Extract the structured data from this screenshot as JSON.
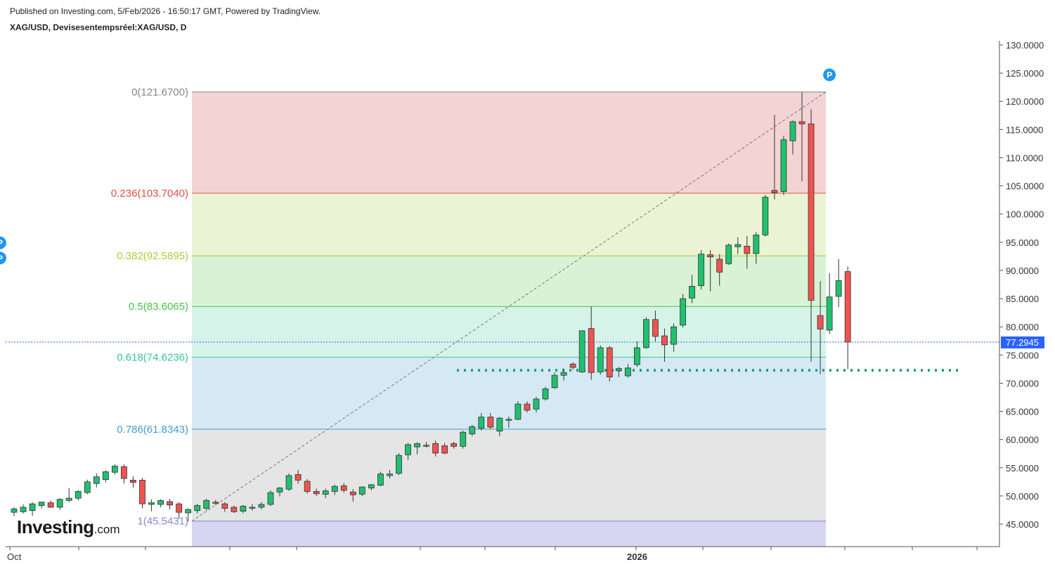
{
  "header": {
    "published": "Published on Investing.com, 5/Feb/2026 - 16:50:17 GMT, Powered by TradingView.",
    "symbol": "XAG/USD, Devisesentempsréel:XAG/USD, D"
  },
  "logo": {
    "main": "Investing",
    "domain": ".com"
  },
  "chart_data": {
    "type": "candlestick",
    "y_axis": {
      "min": 41,
      "max": 131,
      "ticks": [
        "130.0000",
        "125.0000",
        "120.0000",
        "115.0000",
        "110.0000",
        "105.0000",
        "100.0000",
        "95.0000",
        "90.0000",
        "85.0000",
        "80.0000",
        "75.0000",
        "70.0000",
        "65.0000",
        "60.0000",
        "55.0000",
        "50.0000",
        "45.0000"
      ]
    },
    "x_axis": {
      "labels": [
        "Oct",
        "2026"
      ]
    },
    "current_price": {
      "value": 77.2945,
      "label": "77.2945",
      "color": "#2962ff"
    },
    "support_level": {
      "value": 72.3,
      "color": "#26a17b"
    },
    "fibonacci": [
      {
        "level": 0,
        "price": 121.67,
        "label": "0(121.6700)",
        "color": "#888888",
        "fill": "#f3d3d3"
      },
      {
        "level": 0.236,
        "price": 103.704,
        "label": "0.236(103.7040)",
        "color": "#e0504a",
        "fill": "#eaf4d4"
      },
      {
        "level": 0.382,
        "price": 92.5895,
        "label": "0.382(92.5895)",
        "color": "#a9cf3a",
        "fill": "#d8f2d6"
      },
      {
        "level": 0.5,
        "price": 83.6065,
        "label": "0.5(83.6065)",
        "color": "#4cc24c",
        "fill": "#d6f3e9"
      },
      {
        "level": 0.618,
        "price": 74.6236,
        "label": "0.618(74.6236)",
        "color": "#3cc49a",
        "fill": "#d5e9f4"
      },
      {
        "level": 0.786,
        "price": 61.8343,
        "label": "0.786(61.8343)",
        "color": "#3d9fd6",
        "fill": "#e5e5e5"
      },
      {
        "level": 1,
        "price": 45.5431,
        "label": "1(45.5431)",
        "color": "#8888cc",
        "fill": "#d6d6f3"
      }
    ],
    "pivot_markers": [
      {
        "label": "P",
        "price": 124.7
      },
      {
        "label": "P",
        "price": 94.9
      },
      {
        "label": "P",
        "price": 92.2
      }
    ],
    "candles": [
      {
        "o": 47.1,
        "h": 48.0,
        "l": 46.4,
        "c": 47.7
      },
      {
        "o": 47.2,
        "h": 48.5,
        "l": 46.9,
        "c": 48.0
      },
      {
        "o": 47.4,
        "h": 48.9,
        "l": 46.5,
        "c": 48.6
      },
      {
        "o": 48.3,
        "h": 49.0,
        "l": 47.8,
        "c": 48.9
      },
      {
        "o": 48.8,
        "h": 49.2,
        "l": 47.9,
        "c": 48.0
      },
      {
        "o": 48.0,
        "h": 49.6,
        "l": 47.5,
        "c": 49.4
      },
      {
        "o": 49.2,
        "h": 51.4,
        "l": 48.9,
        "c": 49.6
      },
      {
        "o": 49.6,
        "h": 51.0,
        "l": 49.2,
        "c": 50.8
      },
      {
        "o": 50.6,
        "h": 52.9,
        "l": 50.3,
        "c": 52.5
      },
      {
        "o": 52.2,
        "h": 54.0,
        "l": 51.5,
        "c": 53.4
      },
      {
        "o": 52.9,
        "h": 54.6,
        "l": 52.4,
        "c": 54.3
      },
      {
        "o": 54.2,
        "h": 55.6,
        "l": 53.8,
        "c": 55.3
      },
      {
        "o": 55.2,
        "h": 55.6,
        "l": 52.2,
        "c": 53.1
      },
      {
        "o": 52.8,
        "h": 53.5,
        "l": 51.5,
        "c": 52.4
      },
      {
        "o": 52.8,
        "h": 53.2,
        "l": 47.8,
        "c": 48.6
      },
      {
        "o": 48.5,
        "h": 49.4,
        "l": 47.3,
        "c": 48.8
      },
      {
        "o": 48.5,
        "h": 49.4,
        "l": 48.0,
        "c": 49.2
      },
      {
        "o": 49.0,
        "h": 49.5,
        "l": 47.6,
        "c": 48.4
      },
      {
        "o": 48.6,
        "h": 48.9,
        "l": 46.0,
        "c": 47.1
      },
      {
        "o": 47.0,
        "h": 47.8,
        "l": 45.5,
        "c": 47.6
      },
      {
        "o": 47.4,
        "h": 48.6,
        "l": 46.9,
        "c": 48.3
      },
      {
        "o": 47.8,
        "h": 49.5,
        "l": 47.4,
        "c": 49.2
      },
      {
        "o": 48.9,
        "h": 49.3,
        "l": 48.4,
        "c": 48.7
      },
      {
        "o": 48.6,
        "h": 48.9,
        "l": 47.2,
        "c": 47.8
      },
      {
        "o": 48.0,
        "h": 48.3,
        "l": 47.0,
        "c": 47.2
      },
      {
        "o": 47.3,
        "h": 48.4,
        "l": 46.9,
        "c": 48.2
      },
      {
        "o": 47.9,
        "h": 48.6,
        "l": 47.4,
        "c": 48.0
      },
      {
        "o": 48.0,
        "h": 48.9,
        "l": 47.6,
        "c": 48.5
      },
      {
        "o": 48.5,
        "h": 51.0,
        "l": 48.2,
        "c": 50.6
      },
      {
        "o": 50.7,
        "h": 51.6,
        "l": 49.9,
        "c": 51.4
      },
      {
        "o": 51.2,
        "h": 54.0,
        "l": 50.9,
        "c": 53.6
      },
      {
        "o": 53.8,
        "h": 54.6,
        "l": 52.2,
        "c": 52.8
      },
      {
        "o": 52.6,
        "h": 53.0,
        "l": 50.4,
        "c": 50.8
      },
      {
        "o": 50.8,
        "h": 51.3,
        "l": 50.0,
        "c": 50.4
      },
      {
        "o": 50.3,
        "h": 51.3,
        "l": 49.6,
        "c": 50.9
      },
      {
        "o": 50.8,
        "h": 52.0,
        "l": 50.2,
        "c": 51.7
      },
      {
        "o": 51.8,
        "h": 52.3,
        "l": 50.6,
        "c": 51.0
      },
      {
        "o": 50.7,
        "h": 51.2,
        "l": 49.0,
        "c": 50.2
      },
      {
        "o": 50.3,
        "h": 51.6,
        "l": 50.0,
        "c": 51.6
      },
      {
        "o": 51.4,
        "h": 52.1,
        "l": 51.0,
        "c": 52.0
      },
      {
        "o": 51.9,
        "h": 54.3,
        "l": 51.7,
        "c": 53.9
      },
      {
        "o": 53.6,
        "h": 54.6,
        "l": 53.1,
        "c": 53.9
      },
      {
        "o": 54.0,
        "h": 57.6,
        "l": 53.7,
        "c": 57.2
      },
      {
        "o": 57.3,
        "h": 59.4,
        "l": 56.4,
        "c": 59.1
      },
      {
        "o": 58.7,
        "h": 59.5,
        "l": 57.4,
        "c": 59.3
      },
      {
        "o": 59.0,
        "h": 59.6,
        "l": 58.6,
        "c": 59.0
      },
      {
        "o": 59.3,
        "h": 59.8,
        "l": 57.0,
        "c": 57.6
      },
      {
        "o": 58.9,
        "h": 59.4,
        "l": 57.4,
        "c": 57.6
      },
      {
        "o": 59.3,
        "h": 59.6,
        "l": 58.4,
        "c": 58.8
      },
      {
        "o": 58.8,
        "h": 61.6,
        "l": 58.4,
        "c": 61.3
      },
      {
        "o": 61.0,
        "h": 62.6,
        "l": 60.6,
        "c": 62.3
      },
      {
        "o": 62.0,
        "h": 64.7,
        "l": 61.6,
        "c": 64.0
      },
      {
        "o": 64.0,
        "h": 64.7,
        "l": 61.9,
        "c": 62.2
      },
      {
        "o": 61.5,
        "h": 64.0,
        "l": 60.6,
        "c": 63.8
      },
      {
        "o": 63.5,
        "h": 64.1,
        "l": 62.1,
        "c": 63.6
      },
      {
        "o": 63.6,
        "h": 66.8,
        "l": 63.4,
        "c": 66.3
      },
      {
        "o": 66.3,
        "h": 66.8,
        "l": 64.8,
        "c": 65.2
      },
      {
        "o": 65.4,
        "h": 67.6,
        "l": 64.8,
        "c": 67.2
      },
      {
        "o": 67.2,
        "h": 69.4,
        "l": 66.9,
        "c": 69.0
      },
      {
        "o": 69.2,
        "h": 71.9,
        "l": 69.0,
        "c": 71.4
      },
      {
        "o": 71.4,
        "h": 72.6,
        "l": 70.5,
        "c": 71.9
      },
      {
        "o": 73.4,
        "h": 73.7,
        "l": 72.4,
        "c": 72.8
      },
      {
        "o": 72.0,
        "h": 79.4,
        "l": 71.8,
        "c": 79.3
      },
      {
        "o": 79.7,
        "h": 83.6,
        "l": 70.6,
        "c": 71.9
      },
      {
        "o": 72.0,
        "h": 76.7,
        "l": 71.5,
        "c": 76.3
      },
      {
        "o": 76.3,
        "h": 76.6,
        "l": 70.3,
        "c": 71.1
      },
      {
        "o": 72.2,
        "h": 72.9,
        "l": 71.1,
        "c": 72.6
      },
      {
        "o": 71.3,
        "h": 73.4,
        "l": 71.0,
        "c": 72.7
      },
      {
        "o": 73.3,
        "h": 77.4,
        "l": 72.9,
        "c": 76.3
      },
      {
        "o": 76.3,
        "h": 81.7,
        "l": 76.1,
        "c": 81.3
      },
      {
        "o": 81.3,
        "h": 82.9,
        "l": 77.4,
        "c": 78.3
      },
      {
        "o": 78.4,
        "h": 79.7,
        "l": 73.8,
        "c": 76.8
      },
      {
        "o": 76.9,
        "h": 80.6,
        "l": 75.6,
        "c": 80.0
      },
      {
        "o": 80.3,
        "h": 85.8,
        "l": 79.9,
        "c": 85.0
      },
      {
        "o": 85.1,
        "h": 89.2,
        "l": 84.2,
        "c": 87.2
      },
      {
        "o": 87.3,
        "h": 93.6,
        "l": 86.6,
        "c": 92.9
      },
      {
        "o": 92.8,
        "h": 93.6,
        "l": 86.3,
        "c": 92.4
      },
      {
        "o": 92.0,
        "h": 92.9,
        "l": 87.3,
        "c": 89.7
      },
      {
        "o": 91.2,
        "h": 94.8,
        "l": 91.0,
        "c": 94.5
      },
      {
        "o": 94.2,
        "h": 95.9,
        "l": 92.9,
        "c": 94.6
      },
      {
        "o": 94.3,
        "h": 96.1,
        "l": 90.3,
        "c": 93.0
      },
      {
        "o": 93.0,
        "h": 96.8,
        "l": 91.2,
        "c": 96.3
      },
      {
        "o": 96.3,
        "h": 103.4,
        "l": 96.0,
        "c": 103.0
      },
      {
        "o": 104.2,
        "h": 117.6,
        "l": 102.6,
        "c": 103.8
      },
      {
        "o": 104.0,
        "h": 113.9,
        "l": 103.4,
        "c": 113.2
      },
      {
        "o": 113.0,
        "h": 116.6,
        "l": 110.6,
        "c": 116.4
      },
      {
        "o": 116.4,
        "h": 121.6,
        "l": 105.8,
        "c": 116.0
      },
      {
        "o": 116.0,
        "h": 118.6,
        "l": 73.8,
        "c": 84.7
      },
      {
        "o": 82.0,
        "h": 88.1,
        "l": 71.6,
        "c": 79.6
      },
      {
        "o": 79.4,
        "h": 89.5,
        "l": 78.7,
        "c": 85.3
      },
      {
        "o": 85.4,
        "h": 92.0,
        "l": 83.5,
        "c": 88.2
      },
      {
        "o": 89.8,
        "h": 90.7,
        "l": 72.5,
        "c": 77.3
      }
    ]
  }
}
